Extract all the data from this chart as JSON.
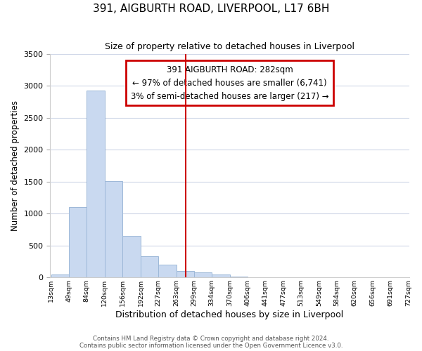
{
  "title": "391, AIGBURTH ROAD, LIVERPOOL, L17 6BH",
  "subtitle": "Size of property relative to detached houses in Liverpool",
  "xlabel": "Distribution of detached houses by size in Liverpool",
  "ylabel": "Number of detached properties",
  "bar_heights": [
    50,
    1100,
    2930,
    1510,
    650,
    330,
    195,
    105,
    80,
    50,
    10,
    5,
    2,
    1,
    0,
    0,
    0,
    0,
    0,
    0
  ],
  "bar_left_edges": [
    13,
    49,
    84,
    120,
    156,
    192,
    227,
    263,
    299,
    334,
    370,
    406,
    441,
    477,
    513,
    549,
    584,
    620,
    656,
    691,
    727
  ],
  "tick_labels": [
    "13sqm",
    "49sqm",
    "84sqm",
    "120sqm",
    "156sqm",
    "192sqm",
    "227sqm",
    "263sqm",
    "299sqm",
    "334sqm",
    "370sqm",
    "406sqm",
    "441sqm",
    "477sqm",
    "513sqm",
    "549sqm",
    "584sqm",
    "620sqm",
    "656sqm",
    "691sqm",
    "727sqm"
  ],
  "bar_color": "#c9d9f0",
  "bar_edge_color": "#9db8d8",
  "vline_x": 282,
  "vline_color": "#cc0000",
  "ylim": [
    0,
    3500
  ],
  "annotation_title": "391 AIGBURTH ROAD: 282sqm",
  "annotation_line1": "← 97% of detached houses are smaller (6,741)",
  "annotation_line2": "3% of semi-detached houses are larger (217) →",
  "annotation_box_color": "#cc0000",
  "footer1": "Contains HM Land Registry data © Crown copyright and database right 2024.",
  "footer2": "Contains public sector information licensed under the Open Government Licence v3.0.",
  "bg_color": "#ffffff",
  "grid_color": "#d0d8e8"
}
